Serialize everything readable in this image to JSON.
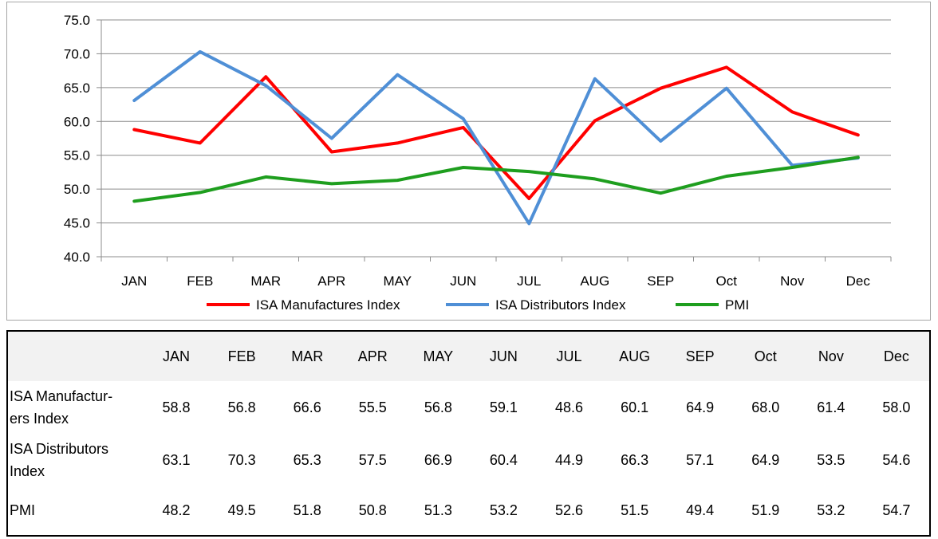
{
  "chart_data": {
    "type": "line",
    "categories": [
      "JAN",
      "FEB",
      "MAR",
      "APR",
      "MAY",
      "JUN",
      "JUL",
      "AUG",
      "SEP",
      "Oct",
      "Nov",
      "Dec"
    ],
    "series": [
      {
        "name": "ISA Manufactures Index",
        "color": "#ff0000",
        "values": [
          58.8,
          56.8,
          66.6,
          55.5,
          56.8,
          59.1,
          48.6,
          60.1,
          64.9,
          68.0,
          61.4,
          58.0
        ]
      },
      {
        "name": "ISA Distributors Index",
        "color": "#4f8fd6",
        "values": [
          63.1,
          70.3,
          65.3,
          57.5,
          66.9,
          60.4,
          44.9,
          66.3,
          57.1,
          64.9,
          53.5,
          54.6
        ]
      },
      {
        "name": "PMI",
        "color": "#1e9e1e",
        "values": [
          48.2,
          49.5,
          51.8,
          50.8,
          51.3,
          53.2,
          52.6,
          51.5,
          49.4,
          51.9,
          53.2,
          54.7
        ]
      }
    ],
    "ylim": [
      40,
      75
    ],
    "yticks": [
      "40.0",
      "45.0",
      "50.0",
      "55.0",
      "60.0",
      "65.0",
      "70.0",
      "75.0"
    ],
    "grid": true,
    "legend": "bottom"
  },
  "table": {
    "headers": [
      "JAN",
      "FEB",
      "MAR",
      "APR",
      "MAY",
      "JUN",
      "JUL",
      "AUG",
      "SEP",
      "Oct",
      "Nov",
      "Dec"
    ],
    "rows": [
      {
        "label_lines": [
          "ISA Manufactur-",
          "ers Index"
        ],
        "values": [
          "58.8",
          "56.8",
          "66.6",
          "55.5",
          "56.8",
          "59.1",
          "48.6",
          "60.1",
          "64.9",
          "68.0",
          "61.4",
          "58.0"
        ]
      },
      {
        "label_lines": [
          "ISA Distributors",
          "Index"
        ],
        "values": [
          "63.1",
          "70.3",
          "65.3",
          "57.5",
          "66.9",
          "60.4",
          "44.9",
          "66.3",
          "57.1",
          "64.9",
          "53.5",
          "54.6"
        ]
      },
      {
        "label_lines": [
          "PMI"
        ],
        "values": [
          "48.2",
          "49.5",
          "51.8",
          "50.8",
          "51.3",
          "53.2",
          "52.6",
          "51.5",
          "49.4",
          "51.9",
          "53.2",
          "54.7"
        ]
      }
    ]
  }
}
